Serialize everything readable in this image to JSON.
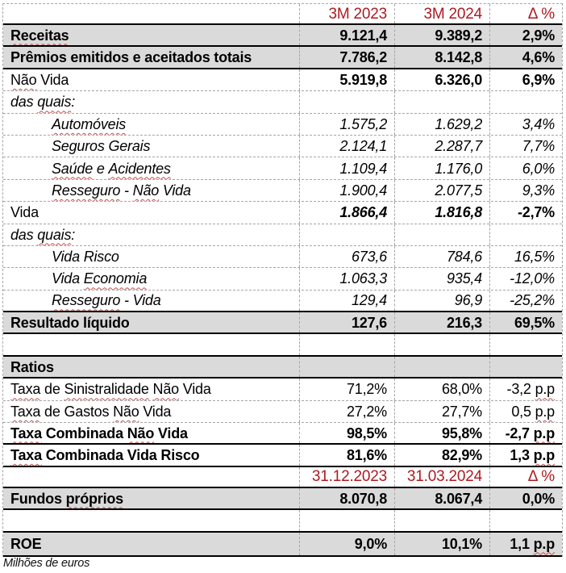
{
  "document": {
    "footnote": "Milhões de euros"
  },
  "colors": {
    "header_red": "#ac1b21",
    "row_gray": "#dadada",
    "squiggle_red": "#c0504d",
    "gridline_gray": "#a6a6a6",
    "border_black": "#000000"
  },
  "table": {
    "column_headers_period": [
      "3M 2023",
      "3M 2024",
      "Δ %"
    ],
    "column_headers_date": [
      "31.12.2023",
      "31.03.2024",
      "Δ %"
    ],
    "rows": [
      {
        "head": true,
        "bb": "solid",
        "label": {
          "segs": []
        },
        "vals": [
          {
            "segs": [
              {
                "t": "3M 2023"
              }
            ]
          },
          {
            "segs": [
              {
                "t": "3M 2024"
              }
            ]
          },
          {
            "segs": [
              {
                "t": "Δ %"
              }
            ]
          }
        ]
      },
      {
        "gray": true,
        "bb": "solid",
        "label": {
          "segs": [
            {
              "t": "Receitas",
              "w": true
            }
          ],
          "b": true
        },
        "vals": [
          {
            "segs": [
              {
                "t": "9.121,4"
              }
            ],
            "b": true
          },
          {
            "segs": [
              {
                "t": "9.389,2"
              }
            ],
            "b": true
          },
          {
            "segs": [
              {
                "t": "2,9%"
              }
            ],
            "b": true
          }
        ]
      },
      {
        "gray": true,
        "bb": "solid",
        "label": {
          "segs": [
            {
              "t": "Prêmios emitidos e aceitados totais"
            }
          ],
          "b": true
        },
        "vals": [
          {
            "segs": [
              {
                "t": "7.786,2"
              }
            ],
            "b": true
          },
          {
            "segs": [
              {
                "t": "8.142,8"
              }
            ],
            "b": true
          },
          {
            "segs": [
              {
                "t": "4,6%"
              }
            ],
            "b": true
          }
        ]
      },
      {
        "bb": "dashed",
        "label": {
          "segs": [
            {
              "t": "Não",
              "w": true
            },
            {
              "t": " Vida"
            }
          ]
        },
        "vals": [
          {
            "segs": [
              {
                "t": "5.919,8"
              }
            ],
            "b": true
          },
          {
            "segs": [
              {
                "t": "6.326,0"
              }
            ],
            "b": true
          },
          {
            "segs": [
              {
                "t": "6,9%"
              }
            ],
            "b": true
          }
        ]
      },
      {
        "bb": "dashed",
        "label": {
          "segs": [
            {
              "t": "das "
            },
            {
              "t": "quais",
              "w": true
            },
            {
              "t": ":"
            }
          ],
          "i": true
        },
        "vals": [
          null,
          null,
          null
        ]
      },
      {
        "bb": "dashed",
        "label": {
          "segs": [
            {
              "t": "Automóveis",
              "w": true
            }
          ],
          "i": true,
          "ind": true
        },
        "vals": [
          {
            "segs": [
              {
                "t": "1.575,2"
              }
            ],
            "i": true
          },
          {
            "segs": [
              {
                "t": "1.629,2"
              }
            ],
            "i": true
          },
          {
            "segs": [
              {
                "t": "3,4%"
              }
            ],
            "i": true
          }
        ]
      },
      {
        "bb": "dashed",
        "label": {
          "segs": [
            {
              "t": "Seguros Gerais"
            }
          ],
          "i": true,
          "ind": true
        },
        "vals": [
          {
            "segs": [
              {
                "t": "2.124,1"
              }
            ],
            "i": true
          },
          {
            "segs": [
              {
                "t": "2.287,7"
              }
            ],
            "i": true
          },
          {
            "segs": [
              {
                "t": "7,7%"
              }
            ],
            "i": true
          }
        ]
      },
      {
        "bb": "dashed",
        "label": {
          "segs": [
            {
              "t": "Saúde",
              "w": true
            },
            {
              "t": " e "
            },
            {
              "t": "Acidentes",
              "w": true
            }
          ],
          "i": true,
          "ind": true
        },
        "vals": [
          {
            "segs": [
              {
                "t": "1.109,4"
              }
            ],
            "i": true
          },
          {
            "segs": [
              {
                "t": "1.176,0"
              }
            ],
            "i": true
          },
          {
            "segs": [
              {
                "t": "6,0%"
              }
            ],
            "i": true
          }
        ]
      },
      {
        "bb": "dashed",
        "label": {
          "segs": [
            {
              "t": "Resseguro",
              "w": true
            },
            {
              "t": " - "
            },
            {
              "t": "Não",
              "w": true
            },
            {
              "t": " Vida"
            }
          ],
          "i": true,
          "ind": true
        },
        "vals": [
          {
            "segs": [
              {
                "t": "1.900,4"
              }
            ],
            "i": true
          },
          {
            "segs": [
              {
                "t": "2.077,5"
              }
            ],
            "i": true
          },
          {
            "segs": [
              {
                "t": "9,3%"
              }
            ],
            "i": true
          }
        ]
      },
      {
        "bb": "dashed",
        "label": {
          "segs": [
            {
              "t": "Vida"
            }
          ]
        },
        "vals": [
          {
            "segs": [
              {
                "t": "1.866,4"
              }
            ],
            "b": true,
            "i": true
          },
          {
            "segs": [
              {
                "t": "1.816,8"
              }
            ],
            "b": true,
            "i": true
          },
          {
            "segs": [
              {
                "t": "-2,7%"
              }
            ],
            "b": true
          }
        ]
      },
      {
        "bb": "dashed",
        "label": {
          "segs": [
            {
              "t": "das "
            },
            {
              "t": "quais",
              "w": true
            },
            {
              "t": ":"
            }
          ],
          "i": true
        },
        "vals": [
          null,
          null,
          null
        ]
      },
      {
        "bb": "dashed",
        "label": {
          "segs": [
            {
              "t": "Vida Risco"
            }
          ],
          "i": true,
          "ind": true
        },
        "vals": [
          {
            "segs": [
              {
                "t": "673,6"
              }
            ],
            "i": true
          },
          {
            "segs": [
              {
                "t": "784,6"
              }
            ],
            "i": true
          },
          {
            "segs": [
              {
                "t": "16,5%"
              }
            ],
            "i": true
          }
        ]
      },
      {
        "bb": "dashed",
        "label": {
          "segs": [
            {
              "t": "Vida "
            },
            {
              "t": "Economia",
              "w": true
            }
          ],
          "i": true,
          "ind": true
        },
        "vals": [
          {
            "segs": [
              {
                "t": "1.063,3"
              }
            ],
            "i": true
          },
          {
            "segs": [
              {
                "t": "935,4"
              }
            ],
            "i": true
          },
          {
            "segs": [
              {
                "t": "-12,0%"
              }
            ],
            "i": true
          }
        ]
      },
      {
        "bb": "solid",
        "label": {
          "segs": [
            {
              "t": "Resseguro",
              "w": true
            },
            {
              "t": " - Vida"
            }
          ],
          "i": true,
          "ind": true
        },
        "vals": [
          {
            "segs": [
              {
                "t": "129,4"
              }
            ],
            "i": true
          },
          {
            "segs": [
              {
                "t": "96,9"
              }
            ],
            "i": true
          },
          {
            "segs": [
              {
                "t": "-25,2%"
              }
            ],
            "i": true
          }
        ]
      },
      {
        "gray": true,
        "bb": "solid",
        "label": {
          "segs": [
            {
              "t": "Resultado líquido"
            }
          ],
          "b": true
        },
        "vals": [
          {
            "segs": [
              {
                "t": "127,6"
              }
            ],
            "b": true
          },
          {
            "segs": [
              {
                "t": "216,3"
              }
            ],
            "b": true
          },
          {
            "segs": [
              {
                "t": "69,5%"
              }
            ],
            "b": true
          }
        ]
      },
      {
        "bb": "solid",
        "label": {
          "segs": []
        },
        "vals": [
          null,
          null,
          null
        ]
      },
      {
        "gray": true,
        "bb": "solid",
        "label": {
          "segs": [
            {
              "t": "Ratios"
            }
          ],
          "b": true
        },
        "vals": [
          null,
          null,
          null
        ]
      },
      {
        "bb": "dashed",
        "label": {
          "segs": [
            {
              "t": "Taxa",
              "w": true
            },
            {
              "t": " de "
            },
            {
              "t": "Sinistralidade",
              "w": true
            },
            {
              "t": " "
            },
            {
              "t": "Não",
              "w": true
            },
            {
              "t": " Vida"
            }
          ]
        },
        "vals": [
          {
            "segs": [
              {
                "t": "71,2%"
              }
            ]
          },
          {
            "segs": [
              {
                "t": "68,0%"
              }
            ]
          },
          {
            "segs": [
              {
                "t": "-3,2 "
              },
              {
                "t": "p.p",
                "w": true
              }
            ]
          }
        ]
      },
      {
        "bb": "dashed",
        "label": {
          "segs": [
            {
              "t": "Taxa",
              "w": true
            },
            {
              "t": " de Gastos "
            },
            {
              "t": "Não",
              "w": true
            },
            {
              "t": " Vida"
            }
          ]
        },
        "vals": [
          {
            "segs": [
              {
                "t": "27,2%"
              }
            ]
          },
          {
            "segs": [
              {
                "t": "27,7%"
              }
            ]
          },
          {
            "segs": [
              {
                "t": "0,5 "
              },
              {
                "t": "p.p",
                "w": true
              }
            ]
          }
        ]
      },
      {
        "bb": "solid",
        "label": {
          "segs": [
            {
              "t": "Taxa",
              "w": true
            },
            {
              "t": " Combinada "
            },
            {
              "t": "Não",
              "w": true
            },
            {
              "t": " Vida"
            }
          ],
          "b": true
        },
        "vals": [
          {
            "segs": [
              {
                "t": "98,5%"
              }
            ],
            "b": true
          },
          {
            "segs": [
              {
                "t": "95,8%"
              }
            ],
            "b": true
          },
          {
            "segs": [
              {
                "t": "-2,7 "
              },
              {
                "t": "p.p",
                "w": true
              }
            ],
            "b": true
          }
        ]
      },
      {
        "bb": "solid",
        "label": {
          "segs": [
            {
              "t": "Taxa",
              "w": true
            },
            {
              "t": " Combinada Vida Risco"
            }
          ],
          "b": true
        },
        "vals": [
          {
            "segs": [
              {
                "t": "81,6%"
              }
            ],
            "b": true
          },
          {
            "segs": [
              {
                "t": "82,9%"
              }
            ],
            "b": true
          },
          {
            "segs": [
              {
                "t": "1,3 "
              },
              {
                "t": "p.p",
                "w": true
              }
            ],
            "b": true
          }
        ]
      },
      {
        "head": true,
        "bb": "solid",
        "label": {
          "segs": []
        },
        "vals": [
          {
            "segs": [
              {
                "t": "31.12.2023"
              }
            ]
          },
          {
            "segs": [
              {
                "t": "31.03.2024"
              }
            ]
          },
          {
            "segs": [
              {
                "t": "Δ %"
              }
            ]
          }
        ]
      },
      {
        "gray": true,
        "bb": "solid",
        "label": {
          "segs": [
            {
              "t": "Fundos "
            },
            {
              "t": "próprios",
              "w": true
            }
          ],
          "b": true
        },
        "vals": [
          {
            "segs": [
              {
                "t": "8.070,8"
              }
            ],
            "b": true
          },
          {
            "segs": [
              {
                "t": "8.067,4"
              }
            ],
            "b": true
          },
          {
            "segs": [
              {
                "t": "0,0%"
              }
            ],
            "b": true
          }
        ]
      },
      {
        "bb": "solid",
        "label": {
          "segs": []
        },
        "vals": [
          null,
          null,
          null
        ]
      },
      {
        "gray": true,
        "bb": "solid",
        "h": 30,
        "label": {
          "segs": [
            {
              "t": "ROE"
            }
          ],
          "b": true
        },
        "vals": [
          {
            "segs": [
              {
                "t": "9,0%"
              }
            ],
            "b": true
          },
          {
            "segs": [
              {
                "t": "10,1%"
              }
            ],
            "b": true
          },
          {
            "segs": [
              {
                "t": "1,1 "
              },
              {
                "t": "p.p",
                "w": true
              }
            ],
            "b": true
          }
        ]
      }
    ]
  }
}
